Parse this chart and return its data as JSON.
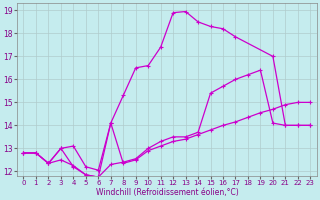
{
  "xlabel": "Windchill (Refroidissement éolien,°C)",
  "xlim": [
    0,
    23
  ],
  "ylim": [
    12,
    19
  ],
  "xticks": [
    0,
    1,
    2,
    3,
    4,
    5,
    6,
    7,
    8,
    9,
    10,
    11,
    12,
    13,
    14,
    15,
    16,
    17,
    18,
    19,
    20,
    21,
    22,
    23
  ],
  "yticks": [
    12,
    13,
    14,
    15,
    16,
    17,
    18,
    19
  ],
  "bg_color": "#c5ecee",
  "grid_color": "#b0cccc",
  "line_color": "#cc00cc",
  "line1_x": [
    0,
    1,
    2,
    3,
    4,
    5,
    6,
    7,
    8,
    9,
    10,
    11,
    12,
    13,
    14,
    15,
    16,
    17,
    20,
    21,
    22,
    23
  ],
  "line1_y": [
    12.8,
    12.8,
    12.35,
    13.0,
    12.2,
    11.85,
    11.75,
    14.1,
    15.3,
    16.5,
    16.6,
    17.4,
    18.9,
    18.95,
    18.5,
    18.3,
    18.2,
    17.85,
    17.0,
    14.0,
    14.0,
    14.0
  ],
  "line2_x": [
    0,
    1,
    2,
    3,
    4,
    5,
    6,
    7,
    8,
    9,
    10,
    11,
    12,
    13,
    14,
    15,
    16,
    17,
    18,
    19,
    20,
    21,
    22,
    23
  ],
  "line2_y": [
    12.8,
    12.8,
    12.35,
    12.5,
    12.25,
    11.85,
    11.75,
    12.3,
    12.4,
    12.55,
    13.0,
    13.3,
    13.5,
    13.5,
    13.7,
    15.4,
    15.7,
    16.0,
    16.2,
    16.4,
    14.1,
    14.0,
    14.0,
    14.0
  ],
  "line3_x": [
    0,
    1,
    2,
    3,
    4,
    5,
    6,
    7,
    8,
    9,
    10,
    11,
    12,
    13,
    14,
    15,
    16,
    17,
    18,
    19,
    20,
    21,
    22,
    23
  ],
  "line3_y": [
    12.8,
    12.8,
    12.35,
    13.0,
    13.1,
    12.2,
    12.05,
    14.1,
    12.35,
    12.5,
    12.9,
    13.1,
    13.3,
    13.4,
    13.6,
    13.8,
    14.0,
    14.15,
    14.35,
    14.55,
    14.7,
    14.9,
    15.0,
    15.0
  ]
}
